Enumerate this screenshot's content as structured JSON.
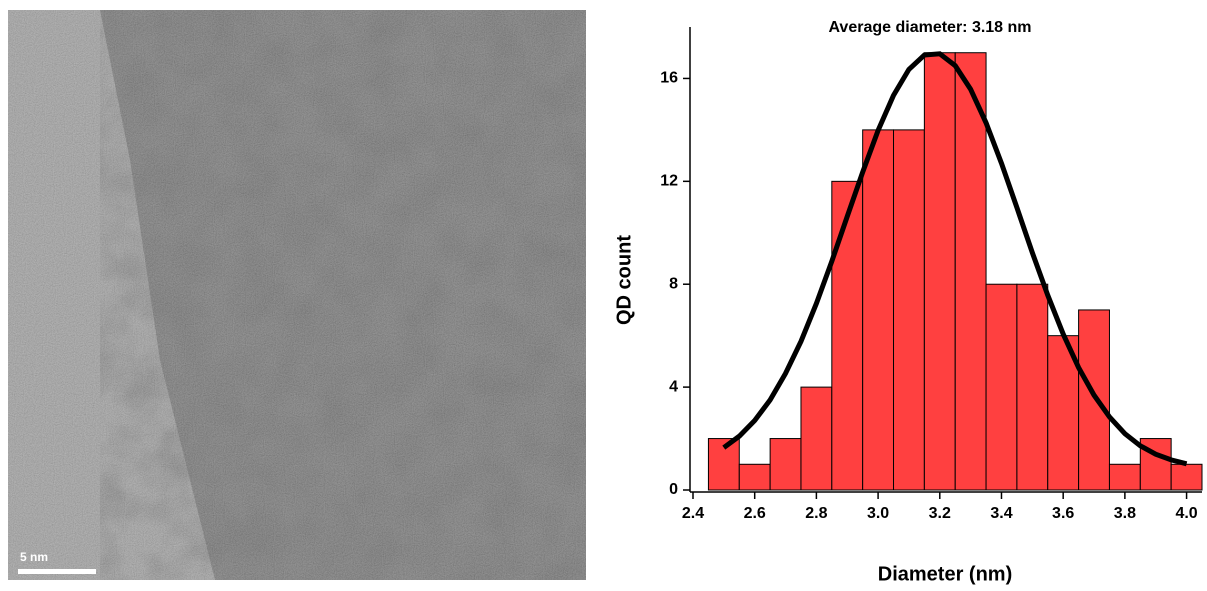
{
  "image": {
    "scale_bar_label": "5 nm"
  },
  "chart_data": {
    "type": "histogram",
    "title": "Average diameter: 3.18 nm",
    "x_label": "Diameter (nm)",
    "y_label": "QD count",
    "bins": [
      2.45,
      2.55,
      2.65,
      2.75,
      2.85,
      2.95,
      3.05,
      3.15,
      3.25,
      3.35,
      3.45,
      3.55,
      3.65,
      3.75,
      3.85,
      3.95,
      4.05
    ],
    "values": [
      2,
      1,
      2,
      4,
      12,
      14,
      14,
      17,
      17,
      8,
      8,
      6,
      7,
      1,
      2,
      1
    ],
    "color": "#ff4040",
    "fit": {
      "color": "#000000",
      "x": [
        2.5,
        2.55,
        2.6,
        2.65,
        2.7,
        2.75,
        2.8,
        2.85,
        2.9,
        2.95,
        3.0,
        3.05,
        3.1,
        3.15,
        3.2,
        3.25,
        3.3,
        3.35,
        3.4,
        3.45,
        3.5,
        3.55,
        3.6,
        3.65,
        3.7,
        3.75,
        3.8,
        3.85,
        3.9,
        3.95,
        4.0
      ],
      "values": [
        1.65,
        2.09,
        2.7,
        3.5,
        4.53,
        5.78,
        7.25,
        8.89,
        10.63,
        12.36,
        13.98,
        15.34,
        16.35,
        16.91,
        16.96,
        16.5,
        15.58,
        14.27,
        12.7,
        10.98,
        9.23,
        7.57,
        6.06,
        4.76,
        3.69,
        2.84,
        2.19,
        1.72,
        1.39,
        1.17,
        1.02
      ]
    },
    "xlim": [
      2.4,
      4.05
    ],
    "ylim": [
      0,
      18
    ],
    "xticks": [
      2.4,
      2.6,
      2.8,
      {
        "value": 3.0,
        "label": "3.0"
      },
      3.2,
      3.4,
      3.6,
      3.8,
      {
        "value": 4.0,
        "label": "4.0"
      }
    ],
    "yticks": [
      0,
      4,
      8,
      12,
      16
    ]
  }
}
